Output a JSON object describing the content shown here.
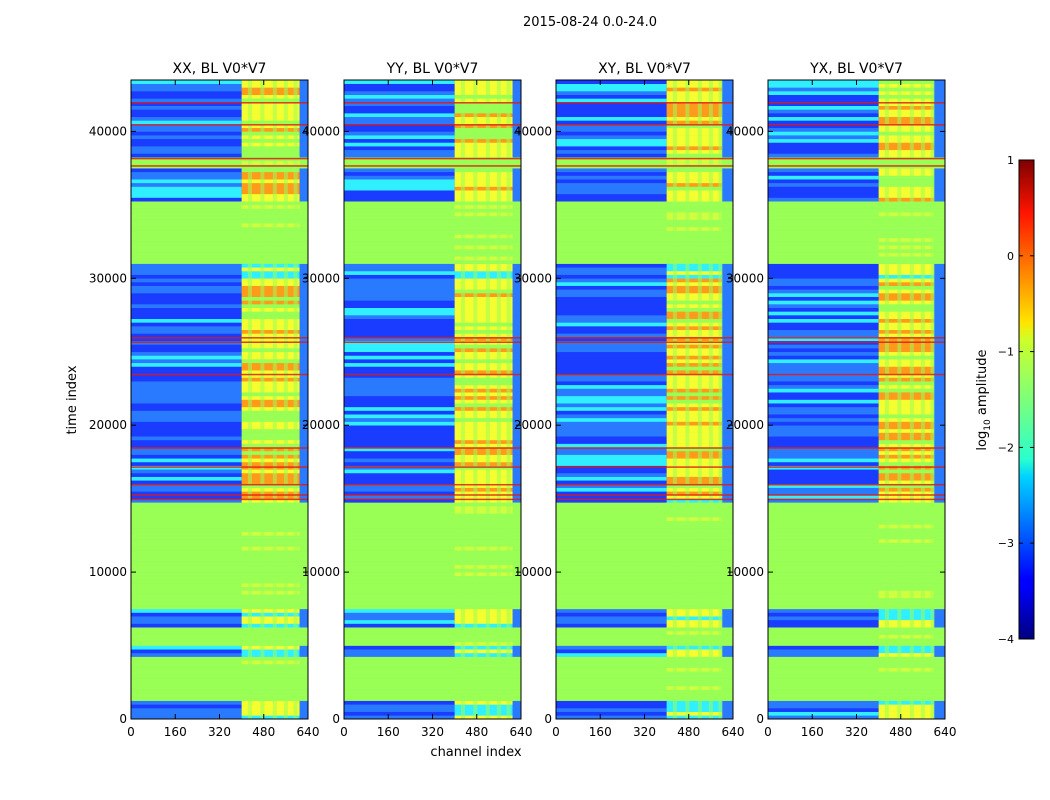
{
  "figure_title": "2015-08-24 0.0-24.0",
  "colors": {
    "background_band": "#99ff55",
    "noise_base": "#1a3cff",
    "noise_alt": "#2a7aff",
    "cyan": "#30f0ff",
    "yellow": "#f5ff30",
    "orange": "#ff9a1a",
    "red": "#e01a10"
  },
  "chart_data": {
    "type": "heatmap",
    "shared": {
      "xlabel": "channel index",
      "ylabel": "time index",
      "xlim": [
        0,
        640
      ],
      "ylim": [
        0,
        43500
      ],
      "xticks": [
        0,
        160,
        320,
        480,
        640
      ],
      "yticks": [
        0,
        10000,
        20000,
        30000,
        40000
      ],
      "colorbar": {
        "label": "log10 amplitude",
        "label_main": "log",
        "label_sub": "10",
        "label_rest": " amplitude",
        "range": [
          -4,
          1
        ],
        "ticks": [
          1,
          0,
          -1,
          -2,
          -3,
          -4
        ],
        "tick_labels": [
          "1",
          "0",
          "−1",
          "−2",
          "−3",
          "−4"
        ],
        "colormap": "jet"
      }
    },
    "panels": [
      {
        "title": "XX, BL V0*V7",
        "bright_channels": [
          400,
          610
        ]
      },
      {
        "title": "YY, BL V0*V7",
        "bright_channels": [
          400,
          610
        ]
      },
      {
        "title": "XY, BL V0*V7",
        "bright_channels": [
          400,
          600
        ]
      },
      {
        "title": "YX, BL V0*V7",
        "bright_channels": [
          400,
          600
        ]
      }
    ],
    "flagged_time_ranges": [
      [
        1200,
        4000
      ],
      [
        4900,
        6200
      ],
      [
        7500,
        14500
      ],
      [
        30800,
        35200
      ],
      [
        37500,
        38000
      ]
    ],
    "bright_time_range": [
      14800,
      29800
    ],
    "rfi_time_rows": [
      15000,
      15300,
      16000,
      17200,
      18500,
      23500,
      25700,
      26000,
      37700,
      38200,
      40500,
      42000
    ],
    "vertical_band_channels": [
      430,
      475,
      520,
      560,
      595
    ]
  }
}
